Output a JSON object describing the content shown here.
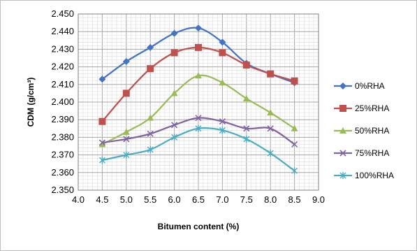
{
  "chart_data": {
    "type": "line",
    "xlabel": "Bitumen content (%)",
    "ylabel": "CDM (g/cm³)",
    "xlim": [
      4.0,
      9.0
    ],
    "ylim": [
      2.35,
      2.45
    ],
    "xticks": [
      "4.0",
      "4.5",
      "5.0",
      "5.5",
      "6.0",
      "6.5",
      "7.0",
      "7.5",
      "8.0",
      "8.5",
      "9.0"
    ],
    "yticks": [
      "2.350",
      "2.360",
      "2.370",
      "2.380",
      "2.390",
      "2.400",
      "2.410",
      "2.420",
      "2.430",
      "2.440",
      "2.450"
    ],
    "grid": true,
    "legend_position": "right",
    "x": [
      4.5,
      5.0,
      5.5,
      6.0,
      6.5,
      7.0,
      7.5,
      8.0,
      8.5
    ],
    "series": [
      {
        "name": "0%RHA",
        "color": "#4472C4",
        "marker": "diamond",
        "values": [
          2.413,
          2.423,
          2.431,
          2.439,
          2.442,
          2.434,
          2.422,
          2.416,
          2.411
        ]
      },
      {
        "name": "25%RHA",
        "color": "#C0504D",
        "marker": "square",
        "values": [
          2.389,
          2.405,
          2.419,
          2.428,
          2.431,
          2.428,
          2.421,
          2.416,
          2.412
        ]
      },
      {
        "name": "50%RHA",
        "color": "#9BBB59",
        "marker": "triangle",
        "values": [
          2.376,
          2.383,
          2.391,
          2.405,
          2.415,
          2.411,
          2.402,
          2.394,
          2.385
        ]
      },
      {
        "name": "75%RHA",
        "color": "#8064A2",
        "marker": "x",
        "values": [
          2.377,
          2.379,
          2.382,
          2.387,
          2.391,
          2.389,
          2.385,
          2.385,
          2.376
        ]
      },
      {
        "name": "100%RHA",
        "color": "#4BACC6",
        "marker": "star",
        "values": [
          2.367,
          2.37,
          2.373,
          2.38,
          2.385,
          2.384,
          2.379,
          2.371,
          2.361
        ]
      }
    ]
  }
}
